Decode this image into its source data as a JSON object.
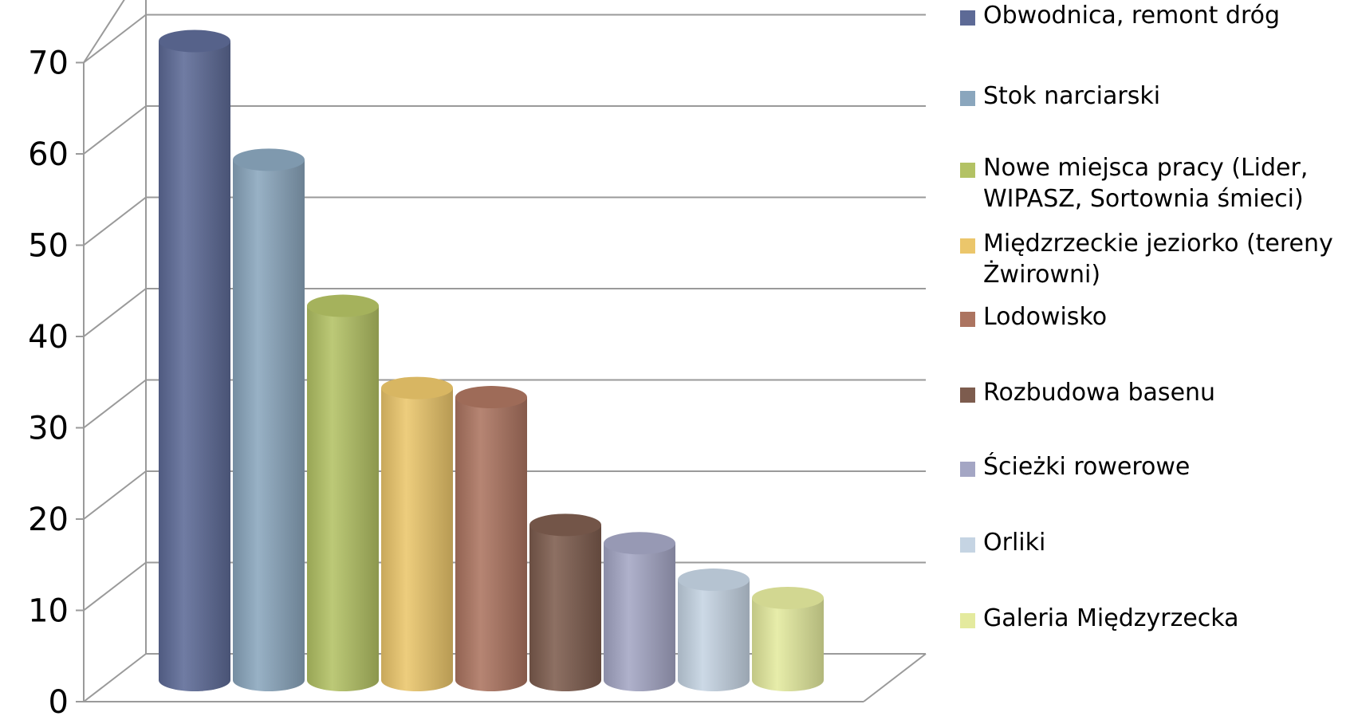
{
  "chart_data": {
    "type": "bar",
    "style": "3d-cylinder",
    "categories": [
      "Obwodnica, remont dróg",
      "Stok narciarski",
      "Nowe miejsca pracy (Lider,\nWIPASZ, Sortownia śmieci)",
      "Międzrzeckie jeziorko (tereny\nŻwirowni)",
      "Lodowisko",
      "Rozbudowa basenu",
      "Ścieżki rowerowe",
      "Orliki",
      "Galeria Międzyrzecka"
    ],
    "values": [
      70,
      57,
      41,
      32,
      31,
      17,
      15,
      11,
      9
    ],
    "colors": [
      "#5d6a96",
      "#8aa6bd",
      "#b3c264",
      "#ebc66b",
      "#ac7460",
      "#7d5c4e",
      "#a4a6c4",
      "#c5d4e3",
      "#e4ea9e"
    ],
    "ylim": [
      0,
      70
    ],
    "yticks": [
      "0",
      "10",
      "20",
      "30",
      "40",
      "50",
      "60",
      "70"
    ],
    "grid": true,
    "legend_position": "right"
  }
}
